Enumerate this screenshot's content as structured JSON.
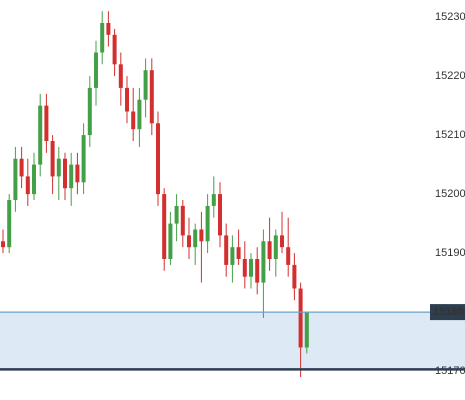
{
  "chart_data": {
    "type": "candlestick",
    "open": [
      15192,
      15191,
      15199,
      15206,
      15203,
      15200,
      15205,
      15215,
      15209,
      15203,
      15206,
      15201,
      15205,
      15202,
      15210,
      15218,
      15224,
      15229,
      15227,
      15222,
      15218,
      15214,
      15211,
      15216,
      15221,
      15212,
      15200,
      15189,
      15195,
      15198,
      15193,
      15191,
      15194,
      15192,
      15198,
      15200,
      15193,
      15188,
      15191,
      15189,
      15186,
      15189,
      15185,
      15192,
      15189,
      15193,
      15191,
      15188,
      15184,
      15174
    ],
    "high": [
      15194,
      15200,
      15208,
      15208,
      15206,
      15207,
      15217,
      15217,
      15210,
      15208,
      15207,
      15207,
      15207,
      15212,
      15220,
      15226,
      15231,
      15231,
      15228,
      15224,
      15220,
      15218,
      15218,
      15223,
      15223,
      15214,
      15201,
      15197,
      15200,
      15199,
      15196,
      15195,
      15197,
      15200,
      15203,
      15202,
      15195,
      15193,
      15194,
      15192,
      15190,
      15191,
      15194,
      15196,
      15194,
      15197,
      15196,
      15190,
      15185,
      15180
    ],
    "low": [
      15190,
      15190,
      15197,
      15201,
      15198,
      15199,
      15203,
      15207,
      15200,
      15199,
      15199,
      15198,
      15200,
      15200,
      15208,
      15215,
      15222,
      15225,
      15220,
      15215,
      15212,
      15209,
      15208,
      15213,
      15210,
      15198,
      15187,
      15188,
      15192,
      15191,
      15189,
      15188,
      15185,
      15190,
      15196,
      15191,
      15186,
      15185,
      15188,
      15184,
      15184,
      15183,
      15179,
      15187,
      15186,
      15190,
      15186,
      15182,
      15169,
      15173
    ],
    "close": [
      15191,
      15199,
      15206,
      15203,
      15200,
      15205,
      15215,
      15209,
      15203,
      15206,
      15201,
      15205,
      15202,
      15210,
      15218,
      15224,
      15229,
      15227,
      15222,
      15218,
      15214,
      15211,
      15216,
      15221,
      15212,
      15200,
      15189,
      15195,
      15198,
      15193,
      15191,
      15194,
      15192,
      15198,
      15200,
      15193,
      15188,
      15191,
      15189,
      15186,
      15189,
      15185,
      15192,
      15189,
      15193,
      15191,
      15188,
      15184,
      15174,
      15180
    ],
    "up_color": "#43a047",
    "down_color": "#d32f2f",
    "ylim": [
      15165.1,
      15232.9
    ],
    "yticks": [
      {
        "value": 15170,
        "label": "15170.0"
      },
      {
        "value": 15190,
        "label": "15190.0"
      },
      {
        "value": 15200,
        "label": "15200.0"
      },
      {
        "value": 15210,
        "label": "15210.0"
      },
      {
        "value": 15220,
        "label": "15220.0"
      },
      {
        "value": 15230,
        "label": "15230.0"
      }
    ],
    "grid": false,
    "zone": {
      "from": 15170.3,
      "to": 15180,
      "color": "#dde9f5",
      "top_line_color": "#6fa0c8",
      "bottom_line_color": "#2c3e50"
    },
    "price_tag": {
      "value": 15180,
      "label": "15180.0"
    }
  }
}
